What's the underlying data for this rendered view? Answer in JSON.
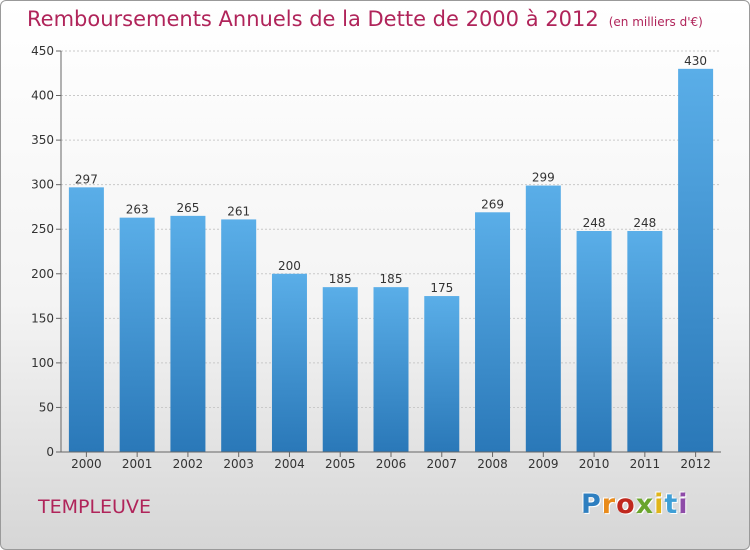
{
  "header": {
    "title": "Remboursements Annuels de la Dette de 2000 à 2012",
    "subtitle": "(en milliers d'€)"
  },
  "footer": {
    "commune": "TEMPLEUVE",
    "logo": "Proxiti"
  },
  "colors": {
    "title": "#b0245a",
    "bar_top": "#5aaee8",
    "bar_bottom": "#2a78b8"
  },
  "chart_data": {
    "type": "bar",
    "categories": [
      "2000",
      "2001",
      "2002",
      "2003",
      "2004",
      "2005",
      "2006",
      "2007",
      "2008",
      "2009",
      "2010",
      "2011",
      "2012"
    ],
    "values": [
      297,
      263,
      265,
      261,
      200,
      185,
      185,
      175,
      269,
      299,
      248,
      248,
      430
    ],
    "title": "Remboursements Annuels de la Dette de 2000 à 2012",
    "xlabel": "",
    "ylabel": "",
    "ylim": [
      0,
      450
    ],
    "yticks": [
      0,
      50,
      100,
      150,
      200,
      250,
      300,
      350,
      400,
      450
    ],
    "grid": true,
    "legend": "none",
    "data_labels": true
  }
}
